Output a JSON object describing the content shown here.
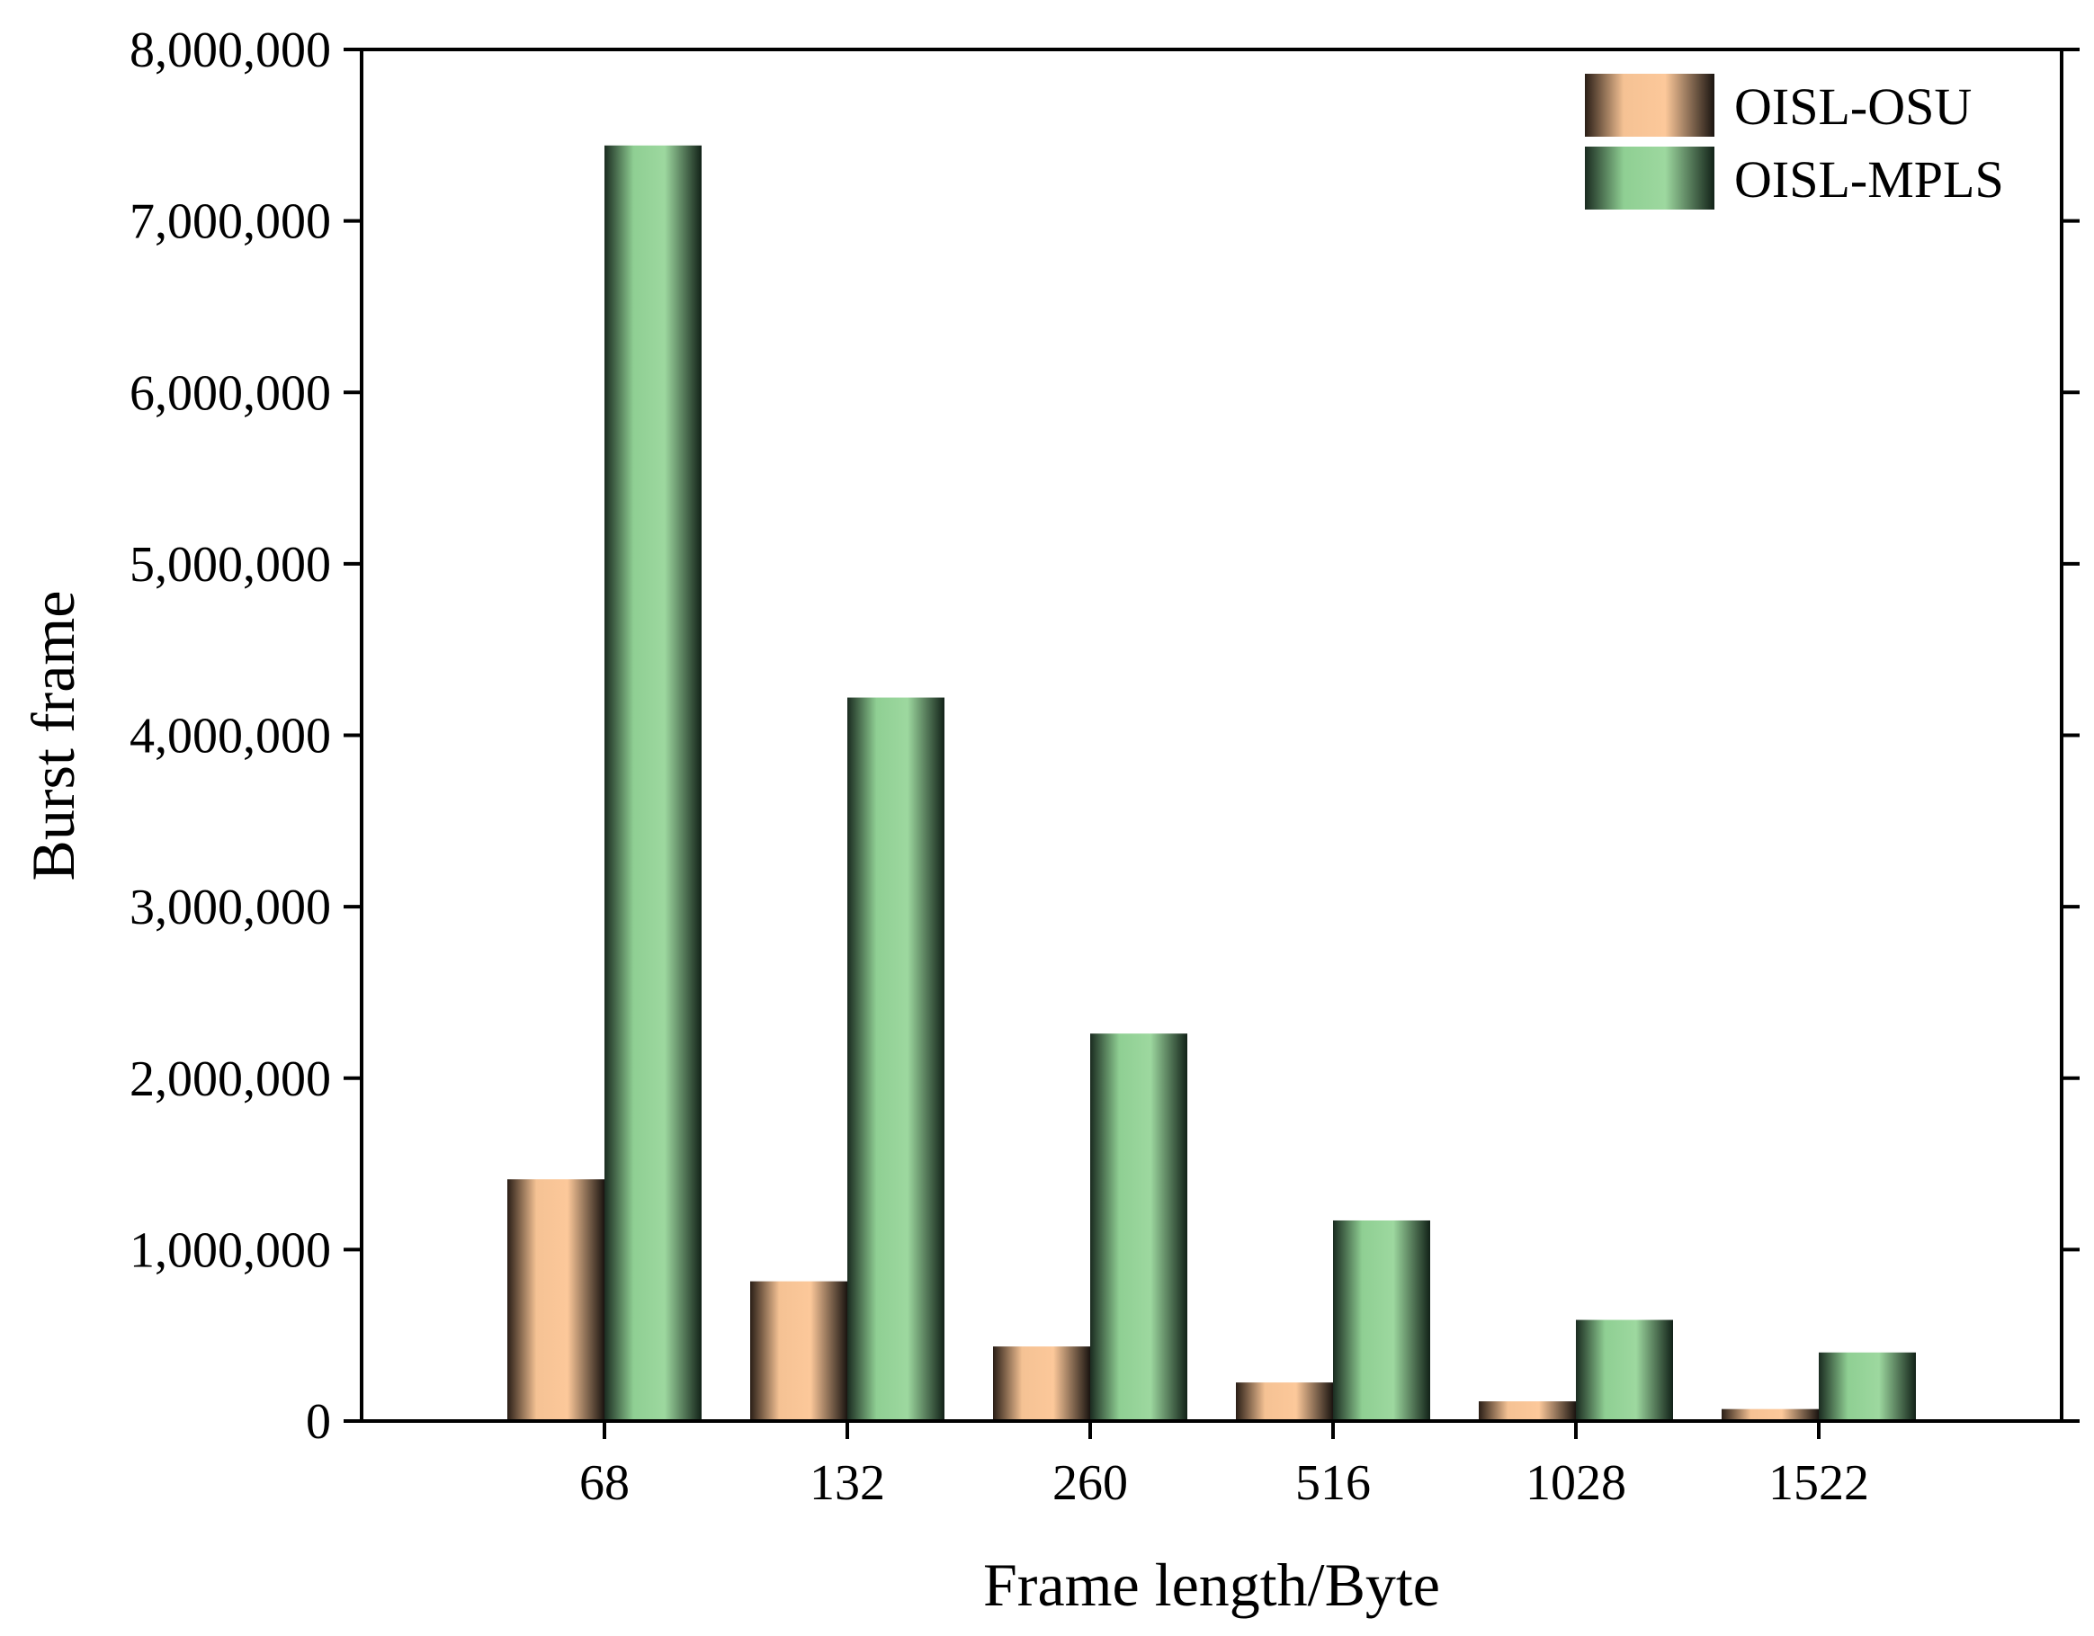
{
  "chart_data": {
    "type": "bar",
    "title": "",
    "xlabel": "Frame length/Byte",
    "ylabel": "Burst frame",
    "categories": [
      "68",
      "132",
      "260",
      "516",
      "1028",
      "1522"
    ],
    "series": [
      {
        "name": "OISL-OSU",
        "values": [
          1410000,
          815000,
          435000,
          225000,
          115000,
          70000
        ]
      },
      {
        "name": "OISL-MPLS",
        "values": [
          7440000,
          4220000,
          2260000,
          1170000,
          590000,
          400000
        ]
      }
    ],
    "ylim": [
      0,
      8000000
    ],
    "yticks": [
      0,
      1000000,
      2000000,
      3000000,
      4000000,
      5000000,
      6000000,
      7000000,
      8000000
    ],
    "ytick_labels": [
      "0",
      "1,000,000",
      "2,000,000",
      "3,000,000",
      "4,000,000",
      "5,000,000",
      "6,000,000",
      "7,000,000",
      "8,000,000"
    ],
    "legend_position": "top-right",
    "grid": false,
    "colors": {
      "OISL-OSU": {
        "light": "#fcc89a",
        "dark": "#1a1410"
      },
      "OISL-MPLS": {
        "light": "#9dd89f",
        "dark": "#122218"
      }
    }
  }
}
